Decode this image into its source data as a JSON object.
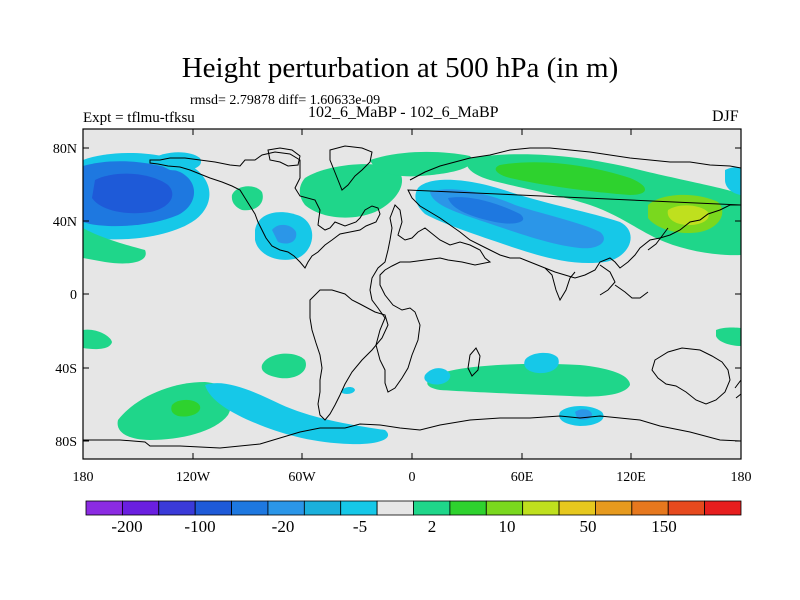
{
  "header": {
    "title": "Height perturbation at 500 hPa (in m)",
    "subtitle": "rmsd= 2.79878 diff= 1.60633e-09",
    "left_label": "Expt = tflmu-tfksu",
    "center_label": "102_6_MaBP - 102_6_MaBP",
    "right_label": "DJF"
  },
  "map": {
    "lon_ticks": [
      "180",
      "120W",
      "60W",
      "0",
      "60E",
      "120E",
      "180"
    ],
    "lat_ticks": [
      "80N",
      "40N",
      "0",
      "40S",
      "80S"
    ],
    "lon_range": [
      -180,
      180
    ],
    "lat_range": [
      -90,
      90
    ],
    "background_color": "#e6e6e6"
  },
  "colorbar": {
    "colors": [
      "#8b2be2",
      "#6a1fe0",
      "#3a3ad8",
      "#1e5ad8",
      "#1e78e0",
      "#2b96e8",
      "#1bb0dc",
      "#16c8e8",
      "#e6e6e6",
      "#1fd68a",
      "#2ed22e",
      "#7ad81e",
      "#bfe01e",
      "#e6c81e",
      "#e69a1e",
      "#e6781e",
      "#e64a1e",
      "#e61e1e"
    ],
    "labels": [
      "-200",
      "-100",
      "-20",
      "-5",
      "2",
      "10",
      "50",
      "150"
    ]
  }
}
